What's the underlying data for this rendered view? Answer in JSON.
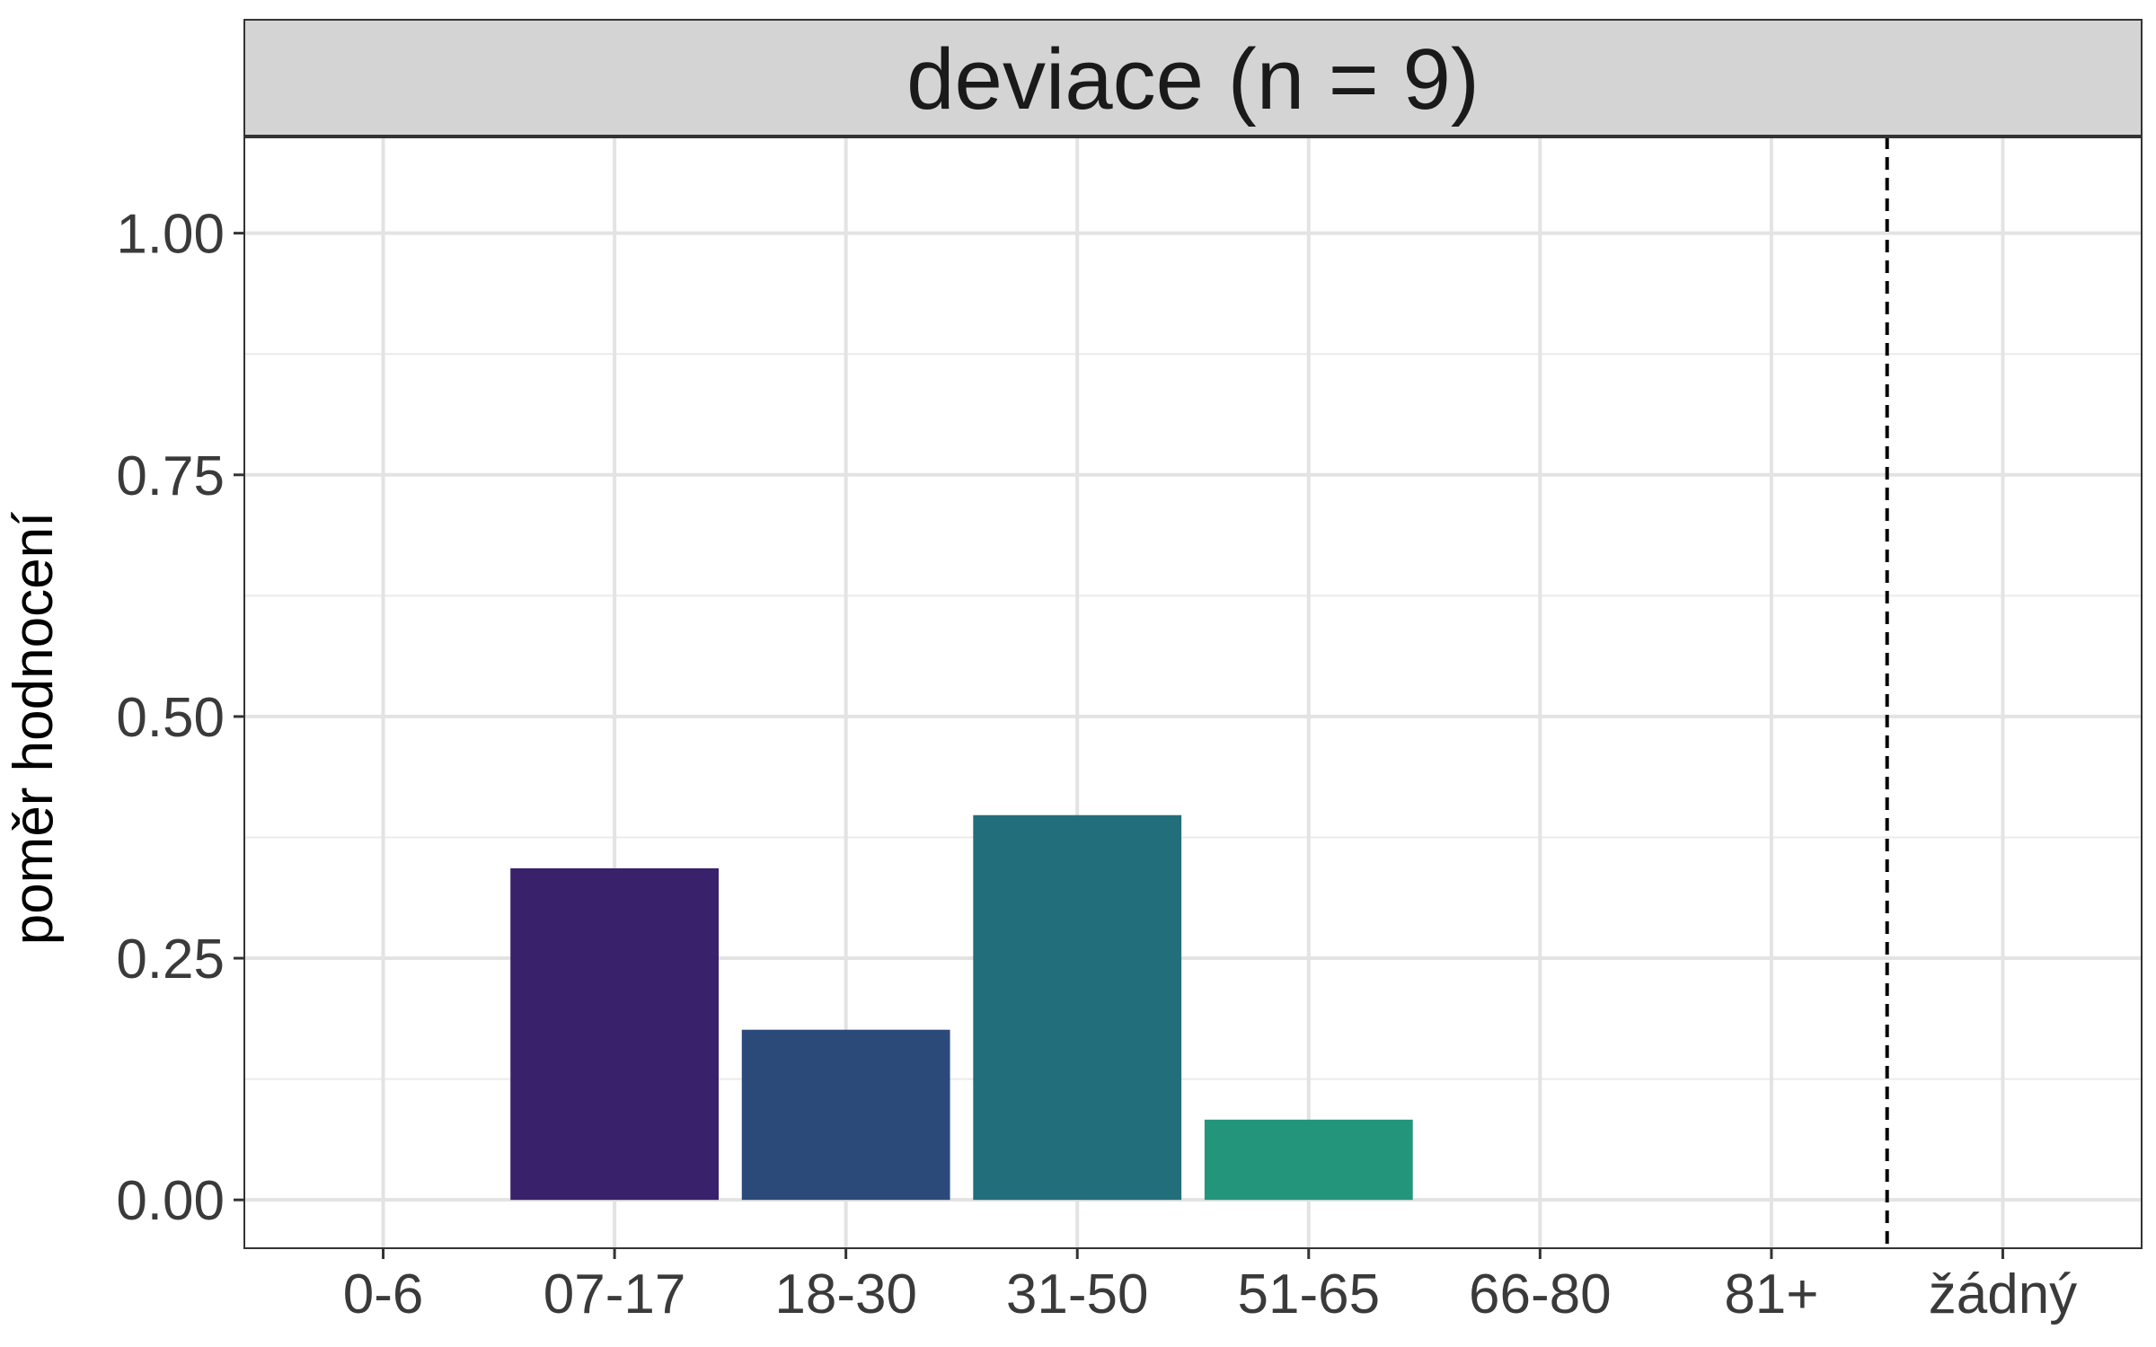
{
  "chart_data": {
    "type": "bar",
    "title": "deviace (n = 9)",
    "xlabel": "",
    "ylabel": "poměr hodnocení",
    "categories": [
      "0-6",
      "07-17",
      "18-30",
      "31-50",
      "51-65",
      "66-80",
      "81+",
      "žádný"
    ],
    "values": [
      0,
      0.343,
      0.176,
      0.398,
      0.083,
      0,
      0,
      0
    ],
    "bar_colors": [
      "#440154",
      "#39216b",
      "#2c4a79",
      "#226e7b",
      "#22957a",
      "#4fba6d",
      "#9fd554",
      "#fde725"
    ],
    "ylim": [
      -0.05,
      1.1
    ],
    "yticks": [
      0,
      0.25,
      0.5,
      0.75,
      1.0
    ],
    "ytick_labels": [
      "0.00",
      "0.25",
      "0.50",
      "0.75",
      "1.00"
    ],
    "reference_line": {
      "style": "dashed",
      "between": [
        "81+",
        "žádný"
      ],
      "color": "#000000"
    },
    "grid": true,
    "legend": "none"
  }
}
